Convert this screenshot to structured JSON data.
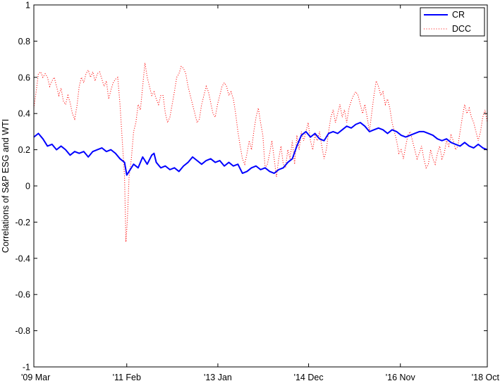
{
  "chart_data": {
    "type": "line",
    "xlabel": "",
    "ylabel": "Correlations of S&P ESG and WTI",
    "ylim": [
      -1,
      1
    ],
    "xlim": [
      0,
      1
    ],
    "y_ticks": [
      1,
      0.8,
      0.6,
      0.4,
      0.2,
      0,
      -0.2,
      -0.4,
      -0.6,
      -0.8,
      -1
    ],
    "x_ticks": [
      {
        "label": "'09 Mar",
        "value": 0.0
      },
      {
        "label": "'11 Feb",
        "value": 0.2049
      },
      {
        "label": "'13 Jan",
        "value": 0.4058
      },
      {
        "label": "'14 Dec",
        "value": 0.6059
      },
      {
        "label": "'16 Nov",
        "value": 0.8083
      },
      {
        "label": "'18 Oct",
        "value": 1.0
      }
    ],
    "grid": false,
    "legend_position": "top-right",
    "series": [
      {
        "name": "CR",
        "color": "#0000ff",
        "style": "solid",
        "points": [
          [
            0.0,
            0.27
          ],
          [
            0.01,
            0.29
          ],
          [
            0.02,
            0.26
          ],
          [
            0.03,
            0.22
          ],
          [
            0.04,
            0.23
          ],
          [
            0.05,
            0.2
          ],
          [
            0.06,
            0.22
          ],
          [
            0.07,
            0.2
          ],
          [
            0.08,
            0.17
          ],
          [
            0.09,
            0.19
          ],
          [
            0.1,
            0.18
          ],
          [
            0.11,
            0.19
          ],
          [
            0.12,
            0.16
          ],
          [
            0.13,
            0.19
          ],
          [
            0.14,
            0.2
          ],
          [
            0.15,
            0.21
          ],
          [
            0.16,
            0.19
          ],
          [
            0.17,
            0.2
          ],
          [
            0.18,
            0.18
          ],
          [
            0.19,
            0.15
          ],
          [
            0.2,
            0.13
          ],
          [
            0.2049,
            0.06
          ],
          [
            0.21,
            0.08
          ],
          [
            0.22,
            0.12
          ],
          [
            0.23,
            0.1
          ],
          [
            0.24,
            0.16
          ],
          [
            0.25,
            0.12
          ],
          [
            0.26,
            0.17
          ],
          [
            0.265,
            0.18
          ],
          [
            0.27,
            0.13
          ],
          [
            0.28,
            0.1
          ],
          [
            0.29,
            0.11
          ],
          [
            0.3,
            0.09
          ],
          [
            0.31,
            0.1
          ],
          [
            0.32,
            0.08
          ],
          [
            0.33,
            0.11
          ],
          [
            0.34,
            0.13
          ],
          [
            0.35,
            0.16
          ],
          [
            0.36,
            0.14
          ],
          [
            0.37,
            0.12
          ],
          [
            0.38,
            0.14
          ],
          [
            0.39,
            0.15
          ],
          [
            0.4,
            0.13
          ],
          [
            0.41,
            0.14
          ],
          [
            0.42,
            0.11
          ],
          [
            0.43,
            0.13
          ],
          [
            0.44,
            0.11
          ],
          [
            0.45,
            0.12
          ],
          [
            0.46,
            0.07
          ],
          [
            0.47,
            0.08
          ],
          [
            0.48,
            0.1
          ],
          [
            0.49,
            0.11
          ],
          [
            0.5,
            0.09
          ],
          [
            0.51,
            0.1
          ],
          [
            0.52,
            0.08
          ],
          [
            0.53,
            0.07
          ],
          [
            0.54,
            0.09
          ],
          [
            0.55,
            0.1
          ],
          [
            0.56,
            0.13
          ],
          [
            0.57,
            0.15
          ],
          [
            0.58,
            0.22
          ],
          [
            0.59,
            0.28
          ],
          [
            0.6,
            0.3
          ],
          [
            0.61,
            0.27
          ],
          [
            0.62,
            0.29
          ],
          [
            0.63,
            0.26
          ],
          [
            0.64,
            0.25
          ],
          [
            0.65,
            0.29
          ],
          [
            0.66,
            0.3
          ],
          [
            0.67,
            0.29
          ],
          [
            0.68,
            0.31
          ],
          [
            0.69,
            0.33
          ],
          [
            0.7,
            0.32
          ],
          [
            0.71,
            0.34
          ],
          [
            0.72,
            0.35
          ],
          [
            0.73,
            0.33
          ],
          [
            0.74,
            0.3
          ],
          [
            0.75,
            0.31
          ],
          [
            0.76,
            0.32
          ],
          [
            0.77,
            0.31
          ],
          [
            0.78,
            0.29
          ],
          [
            0.79,
            0.31
          ],
          [
            0.8,
            0.3
          ],
          [
            0.81,
            0.28
          ],
          [
            0.82,
            0.27
          ],
          [
            0.83,
            0.28
          ],
          [
            0.84,
            0.29
          ],
          [
            0.85,
            0.3
          ],
          [
            0.86,
            0.3
          ],
          [
            0.87,
            0.29
          ],
          [
            0.88,
            0.28
          ],
          [
            0.89,
            0.26
          ],
          [
            0.9,
            0.25
          ],
          [
            0.91,
            0.26
          ],
          [
            0.92,
            0.24
          ],
          [
            0.93,
            0.23
          ],
          [
            0.94,
            0.22
          ],
          [
            0.95,
            0.24
          ],
          [
            0.96,
            0.22
          ],
          [
            0.97,
            0.21
          ],
          [
            0.98,
            0.23
          ],
          [
            0.99,
            0.21
          ],
          [
            1.0,
            0.2
          ]
        ]
      },
      {
        "name": "DCC",
        "color": "#ff0000",
        "style": "dotted",
        "points": [
          [
            0.0,
            0.43
          ],
          [
            0.005,
            0.52
          ],
          [
            0.01,
            0.62
          ],
          [
            0.015,
            0.63
          ],
          [
            0.02,
            0.6
          ],
          [
            0.025,
            0.62
          ],
          [
            0.03,
            0.6
          ],
          [
            0.035,
            0.55
          ],
          [
            0.04,
            0.58
          ],
          [
            0.045,
            0.6
          ],
          [
            0.05,
            0.55
          ],
          [
            0.055,
            0.5
          ],
          [
            0.06,
            0.54
          ],
          [
            0.065,
            0.47
          ],
          [
            0.07,
            0.45
          ],
          [
            0.075,
            0.5
          ],
          [
            0.08,
            0.46
          ],
          [
            0.085,
            0.4
          ],
          [
            0.09,
            0.37
          ],
          [
            0.095,
            0.44
          ],
          [
            0.1,
            0.55
          ],
          [
            0.105,
            0.6
          ],
          [
            0.11,
            0.57
          ],
          [
            0.115,
            0.62
          ],
          [
            0.12,
            0.64
          ],
          [
            0.125,
            0.6
          ],
          [
            0.13,
            0.63
          ],
          [
            0.135,
            0.58
          ],
          [
            0.14,
            0.62
          ],
          [
            0.145,
            0.63
          ],
          [
            0.15,
            0.59
          ],
          [
            0.155,
            0.55
          ],
          [
            0.16,
            0.58
          ],
          [
            0.165,
            0.48
          ],
          [
            0.17,
            0.53
          ],
          [
            0.175,
            0.57
          ],
          [
            0.18,
            0.59
          ],
          [
            0.185,
            0.6
          ],
          [
            0.19,
            0.45
          ],
          [
            0.195,
            0.25
          ],
          [
            0.2,
            0.05
          ],
          [
            0.203,
            -0.31
          ],
          [
            0.206,
            -0.2
          ],
          [
            0.21,
            0.05
          ],
          [
            0.215,
            0.15
          ],
          [
            0.22,
            0.3
          ],
          [
            0.225,
            0.35
          ],
          [
            0.23,
            0.45
          ],
          [
            0.235,
            0.42
          ],
          [
            0.24,
            0.55
          ],
          [
            0.245,
            0.68
          ],
          [
            0.25,
            0.6
          ],
          [
            0.255,
            0.55
          ],
          [
            0.26,
            0.5
          ],
          [
            0.265,
            0.52
          ],
          [
            0.27,
            0.48
          ],
          [
            0.275,
            0.45
          ],
          [
            0.28,
            0.5
          ],
          [
            0.285,
            0.5
          ],
          [
            0.29,
            0.4
          ],
          [
            0.295,
            0.35
          ],
          [
            0.3,
            0.38
          ],
          [
            0.305,
            0.45
          ],
          [
            0.31,
            0.52
          ],
          [
            0.315,
            0.6
          ],
          [
            0.32,
            0.62
          ],
          [
            0.325,
            0.66
          ],
          [
            0.33,
            0.65
          ],
          [
            0.335,
            0.62
          ],
          [
            0.34,
            0.55
          ],
          [
            0.345,
            0.5
          ],
          [
            0.35,
            0.45
          ],
          [
            0.355,
            0.4
          ],
          [
            0.36,
            0.35
          ],
          [
            0.365,
            0.37
          ],
          [
            0.37,
            0.45
          ],
          [
            0.375,
            0.5
          ],
          [
            0.38,
            0.55
          ],
          [
            0.385,
            0.52
          ],
          [
            0.39,
            0.46
          ],
          [
            0.395,
            0.4
          ],
          [
            0.4,
            0.38
          ],
          [
            0.405,
            0.45
          ],
          [
            0.41,
            0.5
          ],
          [
            0.415,
            0.55
          ],
          [
            0.42,
            0.57
          ],
          [
            0.425,
            0.55
          ],
          [
            0.43,
            0.5
          ],
          [
            0.435,
            0.52
          ],
          [
            0.44,
            0.48
          ],
          [
            0.445,
            0.4
          ],
          [
            0.45,
            0.3
          ],
          [
            0.455,
            0.22
          ],
          [
            0.46,
            0.15
          ],
          [
            0.465,
            0.12
          ],
          [
            0.47,
            0.18
          ],
          [
            0.475,
            0.25
          ],
          [
            0.48,
            0.2
          ],
          [
            0.485,
            0.3
          ],
          [
            0.49,
            0.38
          ],
          [
            0.495,
            0.43
          ],
          [
            0.5,
            0.35
          ],
          [
            0.505,
            0.28
          ],
          [
            0.51,
            0.1
          ],
          [
            0.515,
            0.12
          ],
          [
            0.52,
            0.18
          ],
          [
            0.525,
            0.25
          ],
          [
            0.53,
            0.15
          ],
          [
            0.535,
            0.05
          ],
          [
            0.54,
            0.15
          ],
          [
            0.545,
            0.22
          ],
          [
            0.55,
            0.12
          ],
          [
            0.555,
            0.1
          ],
          [
            0.56,
            0.2
          ],
          [
            0.565,
            0.15
          ],
          [
            0.57,
            0.25
          ],
          [
            0.575,
            0.12
          ],
          [
            0.58,
            0.28
          ],
          [
            0.585,
            0.2
          ],
          [
            0.59,
            0.3
          ],
          [
            0.595,
            0.25
          ],
          [
            0.6,
            0.3
          ],
          [
            0.605,
            0.35
          ],
          [
            0.61,
            0.25
          ],
          [
            0.615,
            0.2
          ],
          [
            0.62,
            0.28
          ],
          [
            0.625,
            0.25
          ],
          [
            0.63,
            0.3
          ],
          [
            0.635,
            0.22
          ],
          [
            0.64,
            0.15
          ],
          [
            0.645,
            0.2
          ],
          [
            0.65,
            0.3
          ],
          [
            0.655,
            0.38
          ],
          [
            0.66,
            0.42
          ],
          [
            0.665,
            0.35
          ],
          [
            0.67,
            0.4
          ],
          [
            0.675,
            0.45
          ],
          [
            0.68,
            0.38
          ],
          [
            0.685,
            0.42
          ],
          [
            0.69,
            0.35
          ],
          [
            0.695,
            0.43
          ],
          [
            0.7,
            0.47
          ],
          [
            0.705,
            0.5
          ],
          [
            0.71,
            0.52
          ],
          [
            0.715,
            0.5
          ],
          [
            0.72,
            0.45
          ],
          [
            0.725,
            0.4
          ],
          [
            0.73,
            0.45
          ],
          [
            0.735,
            0.38
          ],
          [
            0.74,
            0.3
          ],
          [
            0.745,
            0.4
          ],
          [
            0.75,
            0.5
          ],
          [
            0.755,
            0.58
          ],
          [
            0.76,
            0.55
          ],
          [
            0.765,
            0.5
          ],
          [
            0.77,
            0.52
          ],
          [
            0.775,
            0.45
          ],
          [
            0.78,
            0.48
          ],
          [
            0.785,
            0.43
          ],
          [
            0.79,
            0.35
          ],
          [
            0.795,
            0.3
          ],
          [
            0.8,
            0.25
          ],
          [
            0.805,
            0.18
          ],
          [
            0.81,
            0.2
          ],
          [
            0.815,
            0.15
          ],
          [
            0.82,
            0.22
          ],
          [
            0.825,
            0.28
          ],
          [
            0.83,
            0.3
          ],
          [
            0.835,
            0.25
          ],
          [
            0.84,
            0.2
          ],
          [
            0.845,
            0.15
          ],
          [
            0.85,
            0.18
          ],
          [
            0.855,
            0.22
          ],
          [
            0.86,
            0.15
          ],
          [
            0.865,
            0.1
          ],
          [
            0.87,
            0.12
          ],
          [
            0.875,
            0.2
          ],
          [
            0.88,
            0.15
          ],
          [
            0.885,
            0.12
          ],
          [
            0.89,
            0.18
          ],
          [
            0.895,
            0.22
          ],
          [
            0.9,
            0.15
          ],
          [
            0.905,
            0.18
          ],
          [
            0.91,
            0.25
          ],
          [
            0.915,
            0.22
          ],
          [
            0.92,
            0.28
          ],
          [
            0.925,
            0.25
          ],
          [
            0.93,
            0.2
          ],
          [
            0.935,
            0.22
          ],
          [
            0.94,
            0.3
          ],
          [
            0.945,
            0.38
          ],
          [
            0.95,
            0.45
          ],
          [
            0.955,
            0.4
          ],
          [
            0.96,
            0.43
          ],
          [
            0.965,
            0.38
          ],
          [
            0.97,
            0.35
          ],
          [
            0.975,
            0.3
          ],
          [
            0.98,
            0.25
          ],
          [
            0.985,
            0.3
          ],
          [
            0.99,
            0.38
          ],
          [
            0.995,
            0.42
          ],
          [
            1.0,
            0.35
          ]
        ]
      }
    ]
  }
}
